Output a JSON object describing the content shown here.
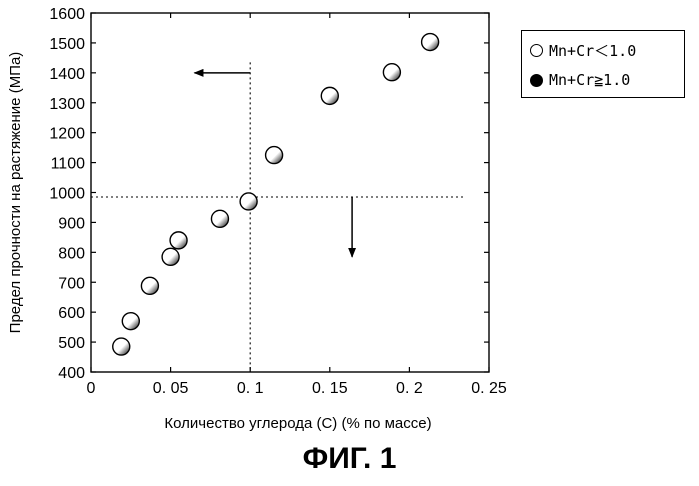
{
  "chart_data": {
    "type": "scatter",
    "title": "",
    "xlabel": "Количество углерода (С) (% по массе)",
    "ylabel": "Предел прочности на растяжение (МПа)",
    "xlim": [
      0,
      0.25
    ],
    "ylim": [
      400,
      1600
    ],
    "x_ticks": [
      "0",
      "0. 05",
      "0. 1",
      "0. 15",
      "0. 2",
      "0. 25"
    ],
    "y_ticks": [
      "400",
      "500",
      "600",
      "700",
      "800",
      "900",
      "1000",
      "1100",
      "1200",
      "1300",
      "1400",
      "1500",
      "1600"
    ],
    "grid": false,
    "legend_position": "right",
    "series": [
      {
        "name": "Mn+Cr＜1.0",
        "marker": "open-circle",
        "points": [
          {
            "x": 0.019,
            "y": 485
          },
          {
            "x": 0.025,
            "y": 570
          },
          {
            "x": 0.037,
            "y": 688
          },
          {
            "x": 0.05,
            "y": 785
          },
          {
            "x": 0.055,
            "y": 840
          },
          {
            "x": 0.081,
            "y": 912
          },
          {
            "x": 0.099,
            "y": 970
          },
          {
            "x": 0.115,
            "y": 1125
          },
          {
            "x": 0.15,
            "y": 1323
          },
          {
            "x": 0.189,
            "y": 1402
          },
          {
            "x": 0.213,
            "y": 1503
          }
        ]
      },
      {
        "name": "Mn+Cr≧1.0",
        "marker": "filled-circle",
        "points": []
      }
    ],
    "reference_lines": {
      "x": 0.1,
      "y": 985
    }
  },
  "legend": {
    "entries": [
      {
        "label": "Mn+Cr＜1.0"
      },
      {
        "label": "Mn+Cr≧1.0"
      }
    ]
  },
  "caption": "ФИГ. 1"
}
